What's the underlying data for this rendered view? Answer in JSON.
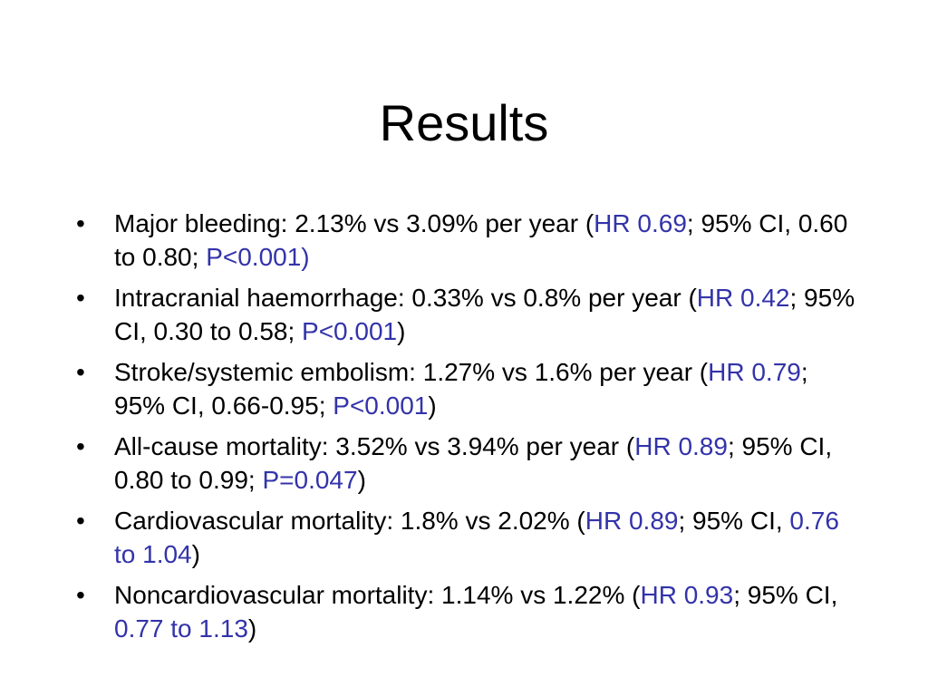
{
  "slide": {
    "title": "Results",
    "bullet_char": "•",
    "colors": {
      "text": "#000000",
      "highlight": "#3333aa",
      "background": "#ffffff"
    },
    "items": [
      {
        "segments": [
          {
            "text": "Major bleeding:  2.13% vs 3.09% per year (",
            "hl": false
          },
          {
            "text": "HR 0.69",
            "hl": true
          },
          {
            "text": "; 95% CI, 0.60 to 0.80; ",
            "hl": false
          },
          {
            "text": "P<0.001)",
            "hl": true
          }
        ]
      },
      {
        "segments": [
          {
            "text": "Intracranial haemorrhage: 0.33% vs 0.8% per year (",
            "hl": false
          },
          {
            "text": "HR 0.42",
            "hl": true
          },
          {
            "text": "; 95% CI, 0.30 to 0.58; ",
            "hl": false
          },
          {
            "text": "P<0.001",
            "hl": true
          },
          {
            "text": ")",
            "hl": false
          }
        ]
      },
      {
        "segments": [
          {
            "text": "Stroke/systemic embolism: 1.27% vs 1.6% per year (",
            "hl": false
          },
          {
            "text": "HR 0.79",
            "hl": true
          },
          {
            "text": "; 95% CI, 0.66-0.95; ",
            "hl": false
          },
          {
            "text": "P<0.001",
            "hl": true
          },
          {
            "text": ")",
            "hl": false
          }
        ]
      },
      {
        "segments": [
          {
            "text": "All-cause mortality: 3.52% vs 3.94% per year (",
            "hl": false
          },
          {
            "text": "HR 0.89",
            "hl": true
          },
          {
            "text": "; 95% CI, 0.80 to 0.99; ",
            "hl": false
          },
          {
            "text": "P=0.047",
            "hl": true
          },
          {
            "text": ")",
            "hl": false
          }
        ]
      },
      {
        "segments": [
          {
            "text": "Cardiovascular mortality: 1.8% vs 2.02% (",
            "hl": false
          },
          {
            "text": "HR 0.89",
            "hl": true
          },
          {
            "text": "; 95% CI, ",
            "hl": false
          },
          {
            "text": "0.76 to 1.04",
            "hl": true
          },
          {
            "text": ")",
            "hl": false
          }
        ]
      },
      {
        "segments": [
          {
            "text": "Noncardiovascular mortality: 1.14% vs 1.22% (",
            "hl": false
          },
          {
            "text": "HR 0.93",
            "hl": true
          },
          {
            "text": "; 95% CI, ",
            "hl": false
          },
          {
            "text": "0.77 to 1.13",
            "hl": true
          },
          {
            "text": ")",
            "hl": false
          }
        ]
      }
    ]
  }
}
